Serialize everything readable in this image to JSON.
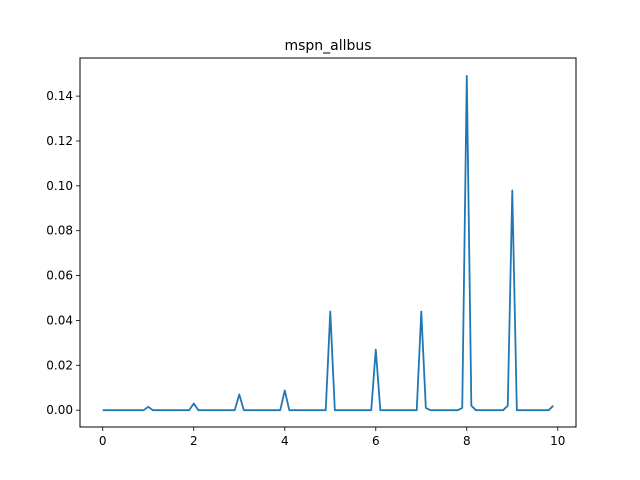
{
  "chart_data": {
    "type": "line",
    "title": "mspn_allbus",
    "xlabel": "",
    "ylabel": "",
    "xlim": [
      -0.5,
      10.4
    ],
    "ylim": [
      -0.0075,
      0.157
    ],
    "xticks": [
      0,
      2,
      4,
      6,
      8,
      10
    ],
    "xtick_labels": [
      "0",
      "2",
      "4",
      "6",
      "8",
      "10"
    ],
    "yticks": [
      0.0,
      0.02,
      0.04,
      0.06,
      0.08,
      0.1,
      0.12,
      0.14
    ],
    "ytick_labels": [
      "0.00",
      "0.02",
      "0.04",
      "0.06",
      "0.08",
      "0.10",
      "0.12",
      "0.14"
    ],
    "grid": false,
    "legend": "none",
    "series": [
      {
        "color": "#1f77b4",
        "points": [
          [
            0.0,
            0.0
          ],
          [
            0.9,
            0.0
          ],
          [
            1.0,
            0.0015
          ],
          [
            1.1,
            0.0
          ],
          [
            1.9,
            0.0
          ],
          [
            2.0,
            0.003
          ],
          [
            2.1,
            0.0
          ],
          [
            2.9,
            0.0
          ],
          [
            3.0,
            0.007
          ],
          [
            3.1,
            0.0
          ],
          [
            3.9,
            0.0
          ],
          [
            4.0,
            0.0088
          ],
          [
            4.1,
            0.0
          ],
          [
            4.9,
            0.0
          ],
          [
            5.0,
            0.044
          ],
          [
            5.1,
            0.0
          ],
          [
            5.9,
            0.0
          ],
          [
            6.0,
            0.027
          ],
          [
            6.1,
            0.0
          ],
          [
            6.9,
            0.0
          ],
          [
            7.0,
            0.044
          ],
          [
            7.1,
            0.001
          ],
          [
            7.2,
            0.0
          ],
          [
            7.8,
            0.0
          ],
          [
            7.9,
            0.001
          ],
          [
            8.0,
            0.149
          ],
          [
            8.1,
            0.002
          ],
          [
            8.2,
            0.0
          ],
          [
            8.8,
            0.0
          ],
          [
            8.9,
            0.002
          ],
          [
            9.0,
            0.098
          ],
          [
            9.1,
            0.0
          ],
          [
            9.8,
            0.0
          ],
          [
            9.9,
            0.002
          ]
        ]
      }
    ]
  }
}
